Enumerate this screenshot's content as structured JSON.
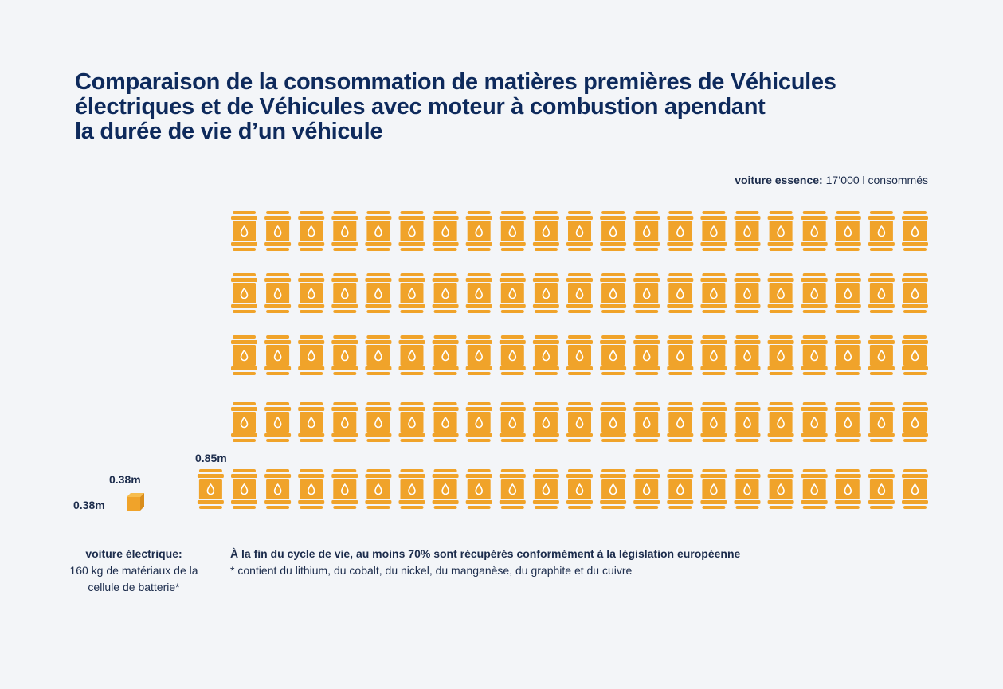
{
  "title": {
    "line1": "Comparaison de la consommation de matières premières de Véhicules",
    "line2": "électriques et de Véhicules avec moteur à combustion apendant",
    "line3": "la durée de vie d’un véhicule"
  },
  "gasoline": {
    "label_bold": "voiture essence:",
    "label_text": "17’000 l consommés",
    "barrel_rows": [
      21,
      21,
      21,
      21,
      22
    ],
    "barrel_color": "#f0a32a",
    "barrel_height_label": "0.85m"
  },
  "electric": {
    "cube_color": "#f0a32a",
    "cube_top_label": "0.38m",
    "cube_side_label": "0.38m",
    "label_bold": "voiture électrique:",
    "label_text": "160 kg de matériaux de la cellule de batterie*"
  },
  "notes": {
    "main": "À la fin du cycle de vie, au moins 70% sont récupérés conformément à la législation européenne",
    "footnote": "* contient du lithium, du cobalt, du nickel, du manganèse, du graphite et du cuivre"
  },
  "icons": {
    "barrel": "oil-barrel-icon",
    "cube": "battery-cube-icon",
    "drop": "drop-icon"
  }
}
